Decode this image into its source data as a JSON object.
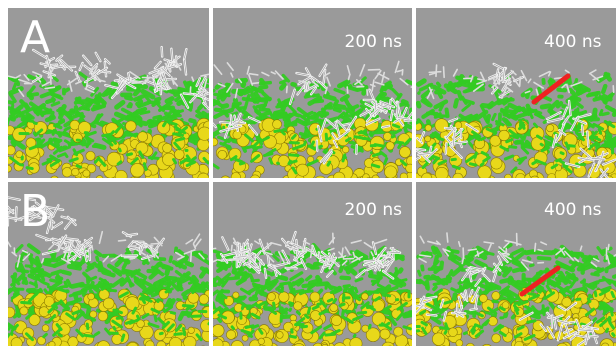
{
  "figure": {
    "rows": [
      {
        "letter": "A",
        "panels": [
          {
            "time_label": "",
            "show_arrow": false,
            "cluster_layout": "surface-scattered"
          },
          {
            "time_label": "200 ns",
            "show_arrow": false,
            "cluster_layout": "partially-inserted"
          },
          {
            "time_label": "400 ns",
            "show_arrow": true,
            "cluster_layout": "inserted"
          }
        ]
      },
      {
        "letter": "B",
        "panels": [
          {
            "time_label": "",
            "show_arrow": false,
            "cluster_layout": "above-surface"
          },
          {
            "time_label": "200 ns",
            "show_arrow": false,
            "cluster_layout": "surface-layer"
          },
          {
            "time_label": "400 ns",
            "show_arrow": true,
            "cluster_layout": "inserted"
          }
        ]
      }
    ],
    "colors": {
      "background": "#9a9a9a",
      "lipid_tails": "#33cc22",
      "lipid_heads": "#e8d81a",
      "molecules": "#f2f2f2",
      "arrow": "#ee2222",
      "label_text": "#ffffff"
    }
  }
}
